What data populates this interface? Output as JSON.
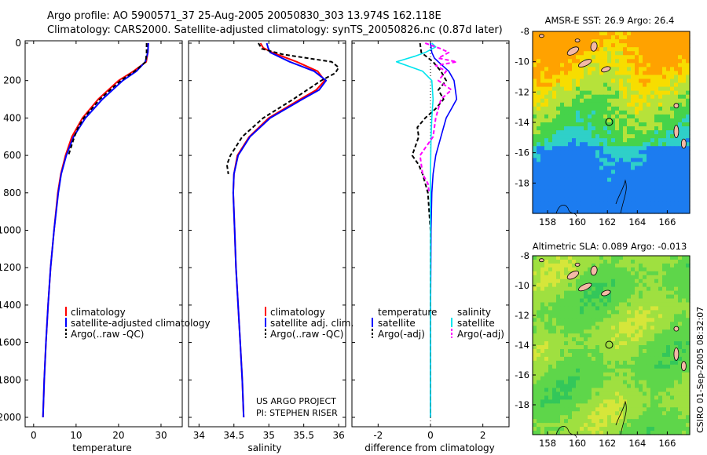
{
  "header": {
    "line1": "Argo profile: AO 5900571_37 25-Aug-2005 20050830_303 13.974S 162.118E",
    "line2": "Climatology: CARS2000. Satellite-adjusted climatology: synTS_20050826.nc (0.87d later)"
  },
  "colors": {
    "climatology": "#ff0000",
    "satellite": "#0000ff",
    "argo": "#000000",
    "sal_satellite": "#00e5ee",
    "sal_argo": "#ff00ff",
    "coast": "#f4b9a6",
    "ocean_warm": "#f7dd00",
    "ocean_mid": "#3fd05a",
    "ocean_cool": "#1c7cf0"
  },
  "y_axis": {
    "ticks": [
      "0",
      "200",
      "400",
      "600",
      "800",
      "1000",
      "1200",
      "1400",
      "1600",
      "1800",
      "2000"
    ]
  },
  "panels": {
    "temperature": {
      "xlabel": "temperature",
      "xticks": [
        "0",
        "10",
        "20",
        "30"
      ],
      "legend": [
        "climatology",
        "satellite-adjusted climatology",
        "Argo(..raw -QC)"
      ]
    },
    "salinity": {
      "xlabel": "salinity",
      "xticks": [
        "34",
        "34.5",
        "35",
        "35.5",
        "36"
      ],
      "legend": [
        "climatology",
        "satellite adj. clim.",
        "Argo(..raw -QC)"
      ],
      "credit": [
        "US ARGO PROJECT",
        "PI: STEPHEN RISER"
      ]
    },
    "difference": {
      "xlabel": "difference from climatology",
      "xticks": [
        "-2",
        "0",
        "2"
      ],
      "legend_temp_title": "temperature",
      "legend_sal_title": "salinity",
      "legend_temp": [
        "satellite",
        "Argo(-adj)"
      ],
      "legend_sal": [
        "satellite",
        "Argo(-adj)"
      ]
    }
  },
  "maps": {
    "sst": {
      "title": "AMSR-E SST: 26.9 Argo: 26.4",
      "yticks": [
        "-8",
        "-10",
        "-12",
        "-14",
        "-16",
        "-18"
      ],
      "xticks": [
        "158",
        "160",
        "162",
        "164",
        "166"
      ]
    },
    "sla": {
      "title": "Altimetric SLA: 0.089 Argo: -0.013",
      "yticks": [
        "-8",
        "-10",
        "-12",
        "-14",
        "-16",
        "-18"
      ],
      "xticks": [
        "158",
        "160",
        "162",
        "164",
        "166"
      ]
    },
    "float_position": {
      "lon": 162.118,
      "lat": -13.974
    }
  },
  "footer": {
    "stamp": "CSIRO 01-Sep-2005 08:32:07"
  },
  "chart_data": [
    {
      "type": "line",
      "xlabel": "temperature",
      "xlim": [
        -2,
        35
      ],
      "ylim": [
        2050,
        0
      ],
      "series": [
        {
          "name": "climatology",
          "depth": [
            0,
            50,
            100,
            150,
            200,
            300,
            400,
            500,
            600,
            700,
            800,
            1000,
            1200,
            1400,
            1600,
            1800,
            2000
          ],
          "values": [
            27.0,
            26.9,
            26.5,
            23.5,
            20.0,
            15.2,
            11.5,
            9.0,
            7.5,
            6.4,
            5.7,
            4.8,
            4.0,
            3.4,
            2.9,
            2.5,
            2.2
          ]
        },
        {
          "name": "satellite-adjusted climatology",
          "depth": [
            0,
            50,
            100,
            150,
            200,
            300,
            400,
            500,
            600,
            700,
            800,
            1000,
            1200,
            1400,
            1600,
            1800,
            2000
          ],
          "values": [
            27.0,
            26.9,
            26.3,
            24.2,
            21.0,
            16.2,
            12.2,
            9.4,
            7.7,
            6.5,
            5.8,
            4.8,
            4.0,
            3.4,
            2.9,
            2.5,
            2.2
          ]
        },
        {
          "name": "Argo(..raw -QC)",
          "depth": [
            0,
            50,
            100,
            150,
            200,
            300,
            400,
            450,
            500,
            600
          ],
          "values": [
            26.6,
            26.6,
            26.4,
            23.8,
            20.5,
            15.6,
            11.8,
            10.5,
            9.6,
            8.2
          ]
        }
      ]
    },
    {
      "type": "line",
      "xlabel": "salinity",
      "xlim": [
        33.85,
        36.1
      ],
      "ylim": [
        2050,
        0
      ],
      "series": [
        {
          "name": "climatology",
          "depth": [
            0,
            25,
            50,
            100,
            150,
            200,
            250,
            300,
            400,
            500,
            600,
            700,
            800,
            1000,
            1200,
            1400,
            1600,
            1800,
            2000
          ],
          "values": [
            34.88,
            34.92,
            35.05,
            35.4,
            35.7,
            35.8,
            35.68,
            35.45,
            35.0,
            34.72,
            34.55,
            34.5,
            34.49,
            34.51,
            34.53,
            34.56,
            34.59,
            34.62,
            34.64
          ]
        },
        {
          "name": "satellite adj. clim.",
          "depth": [
            0,
            25,
            50,
            100,
            150,
            200,
            250,
            300,
            400,
            500,
            600,
            700,
            800,
            1000,
            1200,
            1400,
            1600,
            1800,
            2000
          ],
          "values": [
            34.97,
            34.99,
            35.02,
            35.3,
            35.65,
            35.82,
            35.72,
            35.48,
            35.02,
            34.73,
            34.56,
            34.5,
            34.49,
            34.51,
            34.53,
            34.56,
            34.59,
            34.62,
            34.64
          ]
        },
        {
          "name": "Argo(..raw -QC)",
          "depth": [
            0,
            30,
            60,
            100,
            130,
            160,
            200,
            250,
            300,
            400,
            500,
            600,
            650,
            700
          ],
          "values": [
            34.85,
            34.9,
            35.2,
            35.9,
            36.0,
            35.95,
            35.75,
            35.55,
            35.35,
            34.92,
            34.62,
            34.45,
            34.4,
            34.42
          ]
        }
      ]
    },
    {
      "type": "line",
      "xlabel": "difference from climatology",
      "xlim": [
        -3,
        3
      ],
      "ylim": [
        2050,
        0
      ],
      "series": [
        {
          "name": "temperature satellite",
          "depth": [
            0,
            50,
            80,
            100,
            150,
            200,
            300,
            350,
            400,
            500,
            600,
            700,
            800,
            1000,
            1500,
            2000
          ],
          "values": [
            0.0,
            0.05,
            0.15,
            0.3,
            0.7,
            0.9,
            1.0,
            0.8,
            0.6,
            0.4,
            0.2,
            0.1,
            0.05,
            0.02,
            0.0,
            0.0
          ]
        },
        {
          "name": "temperature Argo(-adj)",
          "depth": [
            0,
            50,
            100,
            150,
            200,
            250,
            300,
            350,
            400,
            450,
            500,
            600,
            650,
            700,
            800,
            900,
            1000,
            1500,
            2000
          ],
          "values": [
            -0.4,
            -0.35,
            0.1,
            0.4,
            0.6,
            0.3,
            0.5,
            0.2,
            -0.2,
            -0.5,
            -0.45,
            -0.7,
            -0.45,
            -0.3,
            -0.1,
            -0.05,
            0.0,
            0.0,
            0.0
          ]
        },
        {
          "name": "salinity satellite",
          "depth": [
            0,
            20,
            50,
            70,
            100,
            150,
            200,
            300,
            400,
            500,
            700,
            1000,
            1500,
            2000
          ],
          "values": [
            0.05,
            0.2,
            -0.2,
            -0.6,
            -1.3,
            -0.3,
            0.05,
            0.1,
            0.05,
            0.02,
            0.0,
            0.0,
            0.0,
            0.0
          ]
        },
        {
          "name": "salinity Argo(-adj)",
          "depth": [
            0,
            30,
            50,
            80,
            100,
            120,
            150,
            200,
            250,
            300,
            350,
            400,
            500,
            600,
            700,
            750,
            800
          ],
          "values": [
            -0.2,
            0.4,
            0.7,
            0.3,
            1.0,
            0.2,
            0.6,
            0.3,
            0.8,
            0.4,
            0.3,
            0.2,
            0.1,
            -0.4,
            -0.3,
            -0.1,
            -0.05
          ]
        }
      ]
    }
  ]
}
